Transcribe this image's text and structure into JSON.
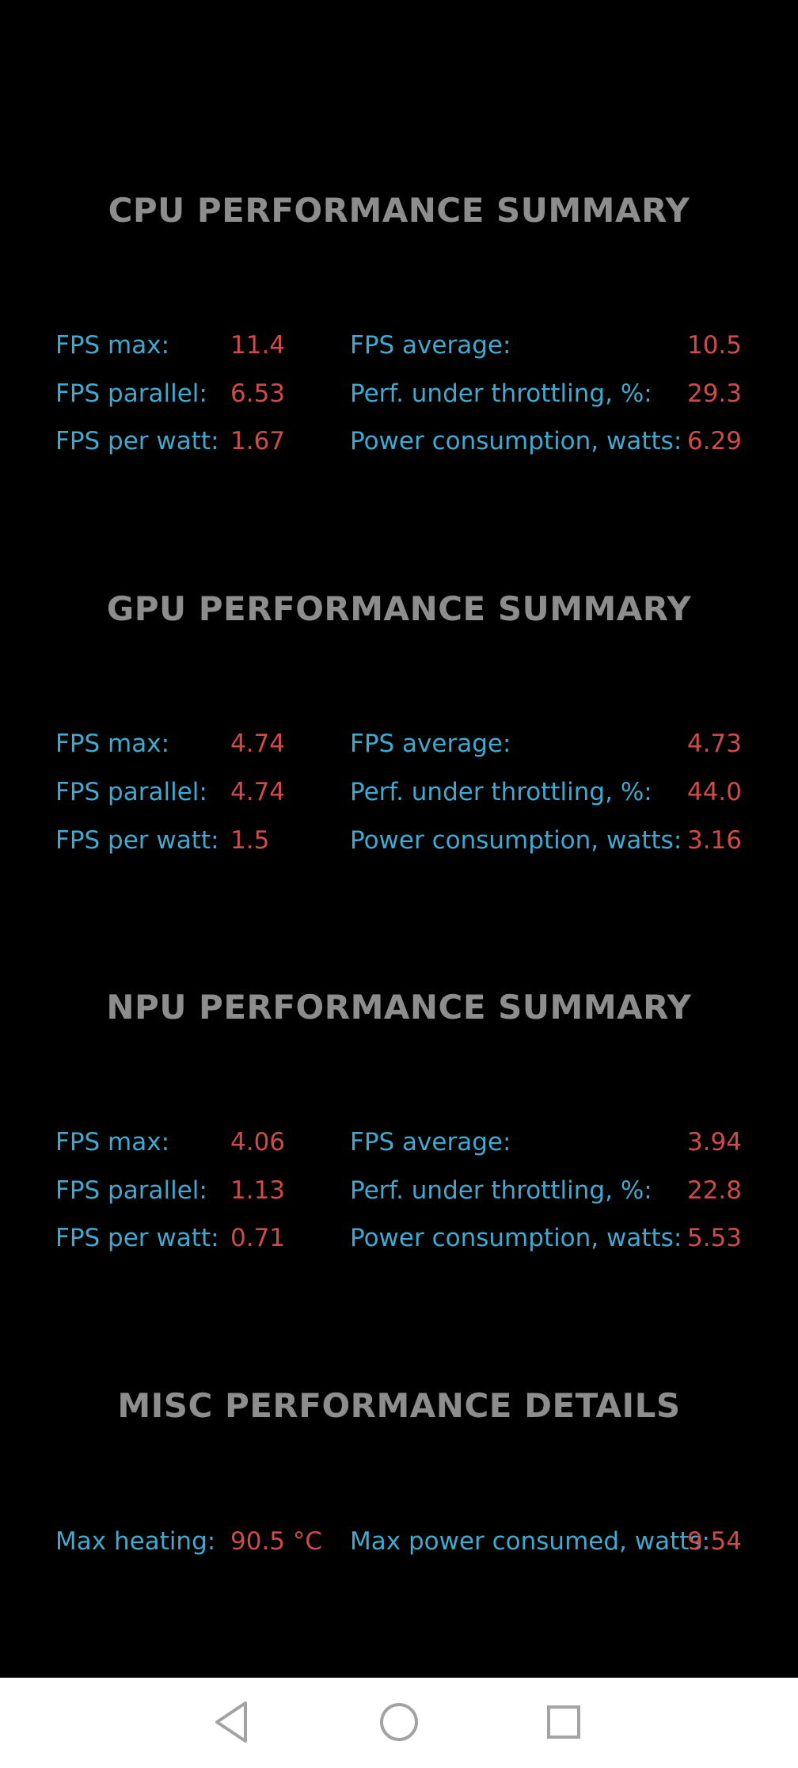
{
  "sections": [
    {
      "title": "CPU PERFORMANCE SUMMARY",
      "rows": [
        {
          "label1": "FPS max:",
          "value1": "11.4",
          "label2": "FPS average:",
          "value2": "10.5"
        },
        {
          "label1": "FPS parallel:",
          "value1": "6.53",
          "label2": "Perf. under throttling, %:",
          "value2": "29.3"
        },
        {
          "label1": "FPS per watt:",
          "value1": "1.67",
          "label2": "Power consumption, watts:",
          "value2": "6.29"
        }
      ]
    },
    {
      "title": "GPU PERFORMANCE SUMMARY",
      "rows": [
        {
          "label1": "FPS max:",
          "value1": "4.74",
          "label2": "FPS average:",
          "value2": "4.73"
        },
        {
          "label1": "FPS parallel:",
          "value1": "4.74",
          "label2": "Perf. under throttling, %:",
          "value2": "44.0"
        },
        {
          "label1": "FPS per watt:",
          "value1": "1.5",
          "label2": "Power consumption, watts:",
          "value2": "3.16"
        }
      ]
    },
    {
      "title": "NPU PERFORMANCE SUMMARY",
      "rows": [
        {
          "label1": "FPS max:",
          "value1": "4.06",
          "label2": "FPS average:",
          "value2": "3.94"
        },
        {
          "label1": "FPS parallel:",
          "value1": "1.13",
          "label2": "Perf. under throttling, %:",
          "value2": "22.8"
        },
        {
          "label1": "FPS per watt:",
          "value1": "0.71",
          "label2": "Power consumption, watts:",
          "value2": "5.53"
        }
      ]
    },
    {
      "title": "MISC PERFORMANCE DETAILS",
      "rows": [
        {
          "label1": "Max heating:",
          "value1": "90.5 °C",
          "label2": "Max power consumed, watts:",
          "value2": "9.54"
        }
      ]
    }
  ],
  "colors": {
    "background": "#000000",
    "title": "#8d8d8d",
    "label": "#3fa9cf",
    "value": "#cf4a4a",
    "nav_bar": "#ffffff"
  },
  "nav": {
    "back_icon": "back-triangle-icon",
    "home_icon": "home-circle-icon",
    "recents_icon": "recents-square-icon"
  }
}
